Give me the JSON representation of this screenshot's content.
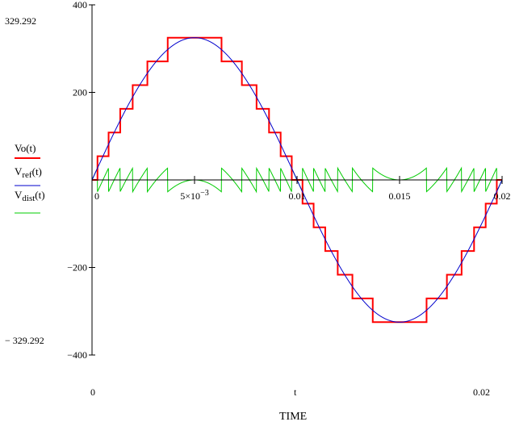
{
  "chart_data": {
    "type": "line",
    "xlabel": "TIME",
    "x_var": "t",
    "xlim": [
      0,
      0.02
    ],
    "ylim": [
      -400,
      400
    ],
    "y_ticks": [
      400,
      200,
      -200,
      -400
    ],
    "y_tick_labels": [
      "400",
      "200",
      "−200",
      "−400"
    ],
    "x_ticks": [
      0,
      0.005,
      0.01,
      0.015,
      0.02
    ],
    "x_tick_labels": [
      "0",
      "5×10",
      "0.01",
      "0.015",
      "0.02"
    ],
    "x_tick_sup": "−3",
    "ymax_marker": "329.292",
    "ymin_marker": "− 329.292",
    "x_range_left": "0",
    "x_range_right": "0.02",
    "peak": 325,
    "frequency_hz": 50,
    "steps_per_quarter": 6,
    "series": [
      {
        "name": "Vo(t)",
        "label": "Vo(t)",
        "sub": "",
        "suffix": "",
        "color": "#ff0000",
        "kind": "staircase"
      },
      {
        "name": "V.ref(t)",
        "label": "V",
        "sub": "ref",
        "suffix": "(t)",
        "color": "#0000cc",
        "kind": "sine"
      },
      {
        "name": "V.dist(t)",
        "label": "V",
        "sub": "dist",
        "suffix": "(t)",
        "color": "#00cc00",
        "kind": "error"
      }
    ]
  }
}
